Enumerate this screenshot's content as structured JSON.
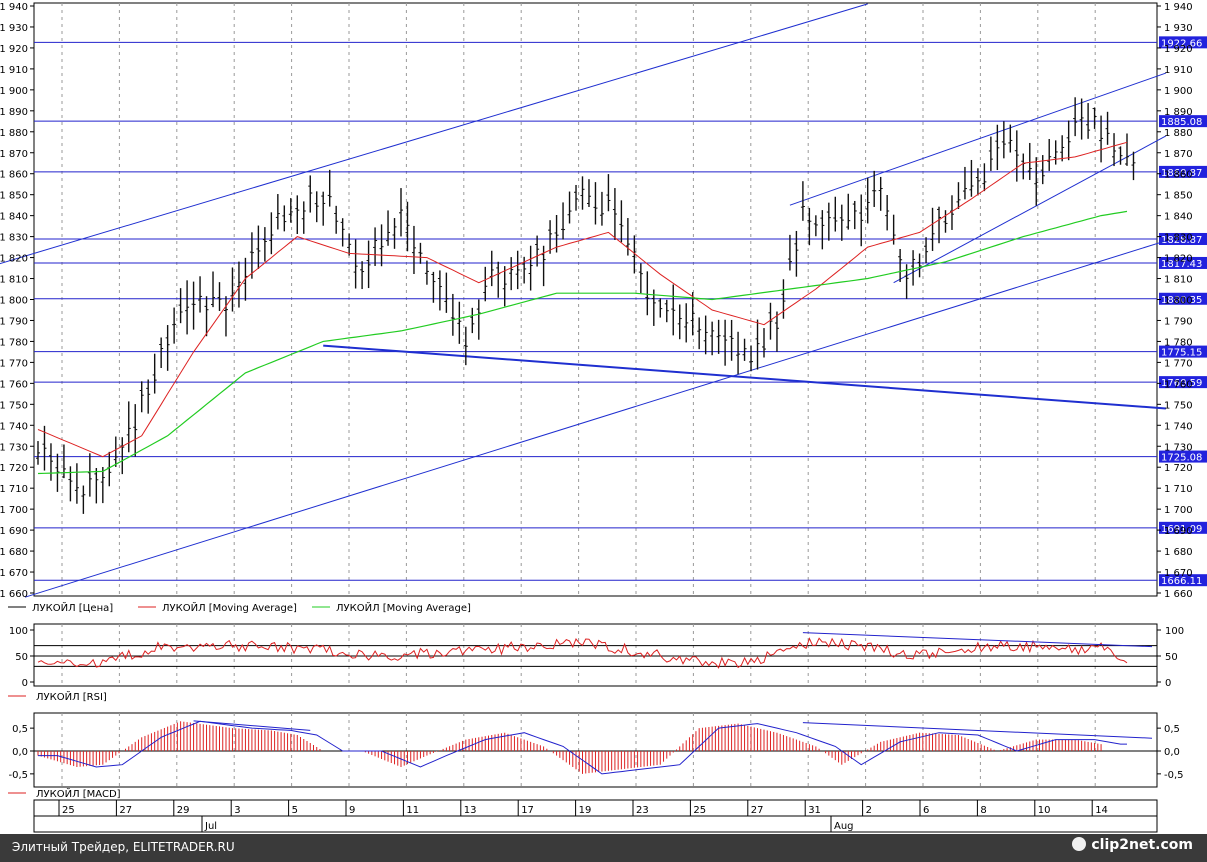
{
  "chart_data": [
    {
      "type": "line",
      "panel": "price",
      "ylim": [
        1660,
        1940
      ],
      "y_ticks": [
        "1 660",
        "1 670",
        "1 680",
        "1 690",
        "1 700",
        "1 710",
        "1 720",
        "1 730",
        "1 740",
        "1 750",
        "1 760",
        "1 770",
        "1 780",
        "1 790",
        "1 800",
        "1 810",
        "1 820",
        "1 830",
        "1 840",
        "1 850",
        "1 860",
        "1 870",
        "1 880",
        "1 890",
        "1 900",
        "1 910",
        "1 920",
        "1 930",
        "1 940"
      ],
      "levels": [
        "1922.66",
        "1885.08",
        "1860.87",
        "1828.87",
        "1817.43",
        "1800.35",
        "1775.15",
        "1760.59",
        "1725.08",
        "1691.09",
        "1666.11"
      ],
      "legend": [
        "ЛУКОЙЛ [Цена]",
        "ЛУКОЙЛ [Moving Average]",
        "ЛУКОЙЛ [Moving Average]"
      ],
      "price_keypoints": [
        [
          0,
          1730
        ],
        [
          3,
          1710
        ],
        [
          6,
          1720
        ],
        [
          9,
          1765
        ],
        [
          11,
          1795
        ],
        [
          15,
          1800
        ],
        [
          18,
          1835
        ],
        [
          22,
          1850
        ],
        [
          25,
          1815
        ],
        [
          28,
          1840
        ],
        [
          31,
          1805
        ],
        [
          33,
          1780
        ],
        [
          35,
          1810
        ],
        [
          38,
          1815
        ],
        [
          42,
          1850
        ],
        [
          45,
          1840
        ],
        [
          47,
          1805
        ],
        [
          50,
          1790
        ],
        [
          53,
          1785
        ],
        [
          55,
          1770
        ],
        [
          57,
          1790
        ],
        [
          59,
          1840
        ],
        [
          62,
          1835
        ],
        [
          65,
          1850
        ],
        [
          67,
          1810
        ],
        [
          69,
          1830
        ],
        [
          71,
          1850
        ],
        [
          73,
          1860
        ],
        [
          75,
          1875
        ],
        [
          77,
          1855
        ],
        [
          79,
          1875
        ],
        [
          81,
          1885
        ],
        [
          82,
          1880
        ],
        [
          84,
          1868
        ]
      ],
      "ma_red_keypoints": [
        [
          0,
          1738
        ],
        [
          5,
          1725
        ],
        [
          8,
          1735
        ],
        [
          12,
          1775
        ],
        [
          16,
          1810
        ],
        [
          20,
          1830
        ],
        [
          24,
          1822
        ],
        [
          30,
          1820
        ],
        [
          34,
          1808
        ],
        [
          40,
          1825
        ],
        [
          44,
          1832
        ],
        [
          48,
          1812
        ],
        [
          52,
          1795
        ],
        [
          56,
          1788
        ],
        [
          60,
          1805
        ],
        [
          64,
          1825
        ],
        [
          68,
          1832
        ],
        [
          72,
          1848
        ],
        [
          76,
          1865
        ],
        [
          80,
          1868
        ],
        [
          84,
          1875
        ]
      ],
      "ma_green_keypoints": [
        [
          0,
          1717
        ],
        [
          5,
          1718
        ],
        [
          10,
          1735
        ],
        [
          16,
          1765
        ],
        [
          22,
          1780
        ],
        [
          28,
          1785
        ],
        [
          34,
          1793
        ],
        [
          40,
          1803
        ],
        [
          46,
          1803
        ],
        [
          52,
          1800
        ],
        [
          58,
          1805
        ],
        [
          64,
          1810
        ],
        [
          70,
          1818
        ],
        [
          76,
          1830
        ],
        [
          82,
          1840
        ],
        [
          84,
          1842
        ]
      ]
    },
    {
      "type": "line",
      "panel": "rsi",
      "ylim": [
        0,
        100
      ],
      "y_ticks": [
        "0",
        "50",
        "100"
      ],
      "legend": [
        "ЛУКОЙЛ [RSI]"
      ],
      "rsi_keypoints": [
        [
          0,
          45
        ],
        [
          3,
          30
        ],
        [
          6,
          45
        ],
        [
          9,
          65
        ],
        [
          12,
          68
        ],
        [
          18,
          70
        ],
        [
          22,
          60
        ],
        [
          26,
          50
        ],
        [
          30,
          55
        ],
        [
          34,
          60
        ],
        [
          38,
          70
        ],
        [
          42,
          75
        ],
        [
          46,
          60
        ],
        [
          50,
          40
        ],
        [
          53,
          35
        ],
        [
          56,
          45
        ],
        [
          58,
          60
        ],
        [
          60,
          80
        ],
        [
          64,
          65
        ],
        [
          68,
          50
        ],
        [
          72,
          65
        ],
        [
          76,
          70
        ],
        [
          80,
          60
        ],
        [
          82,
          70
        ],
        [
          84,
          30
        ]
      ]
    },
    {
      "type": "bar",
      "panel": "macd",
      "ylim": [
        -0.7,
        0.7
      ],
      "y_ticks": [
        "0,5",
        "0,0",
        "-0,5"
      ],
      "legend": [
        "ЛУКОЙЛ [MACD]"
      ],
      "macd_keypoints": [
        [
          0,
          -0.1
        ],
        [
          3,
          -0.35
        ],
        [
          5,
          -0.3
        ],
        [
          8,
          0.3
        ],
        [
          11,
          0.65
        ],
        [
          15,
          0.5
        ],
        [
          18,
          0.45
        ],
        [
          20,
          0.35
        ],
        [
          22,
          0.0
        ],
        [
          25,
          0.0
        ],
        [
          28,
          -0.35
        ],
        [
          30,
          -0.1
        ],
        [
          33,
          0.25
        ],
        [
          36,
          0.4
        ],
        [
          39,
          0.1
        ],
        [
          42,
          -0.5
        ],
        [
          45,
          -0.4
        ],
        [
          48,
          -0.3
        ],
        [
          51,
          0.5
        ],
        [
          54,
          0.6
        ],
        [
          57,
          0.4
        ],
        [
          60,
          0.1
        ],
        [
          62,
          -0.3
        ],
        [
          65,
          0.2
        ],
        [
          68,
          0.4
        ],
        [
          71,
          0.35
        ],
        [
          74,
          0.0
        ],
        [
          77,
          0.25
        ],
        [
          80,
          0.25
        ],
        [
          82,
          0.15
        ]
      ]
    }
  ],
  "x_axis": {
    "day_labels": [
      "25",
      "27",
      "29",
      "3",
      "5",
      "9",
      "11",
      "13",
      "17",
      "19",
      "23",
      "25",
      "27",
      "31",
      "2",
      "6",
      "8",
      "10",
      "14"
    ],
    "month_labels": [
      "Jul",
      "Aug"
    ]
  },
  "footer": {
    "text": "Элитный Трейдер, ELITETRADER.RU",
    "logo": "clip2net.com"
  }
}
